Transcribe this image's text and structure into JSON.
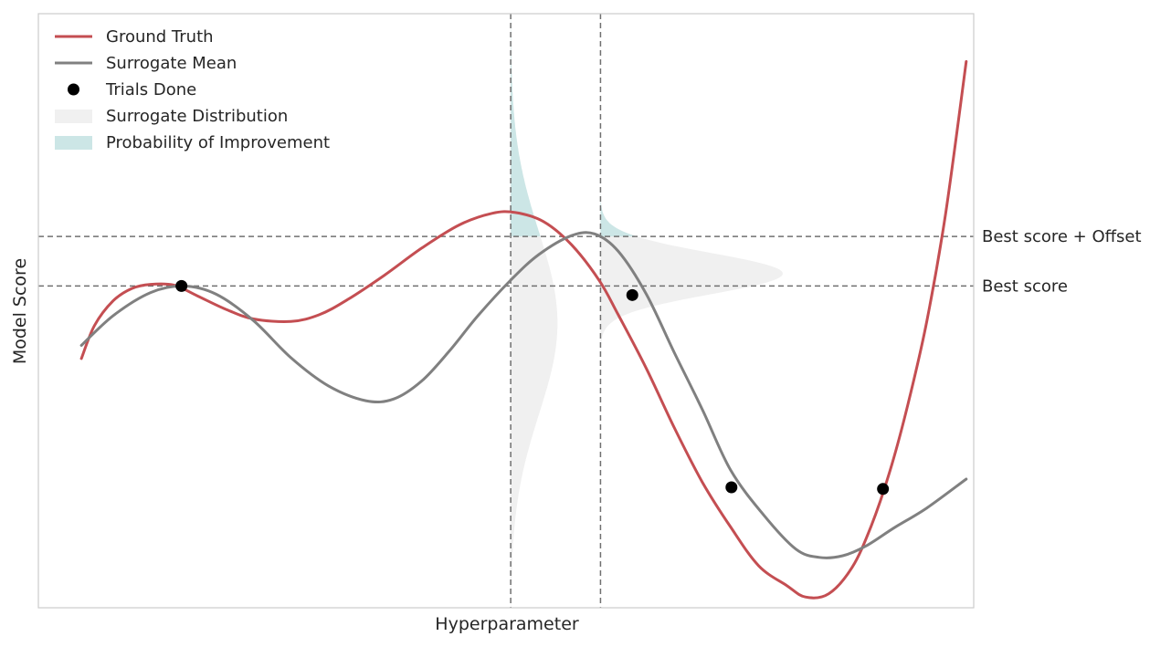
{
  "chart_data": {
    "type": "line",
    "title": "",
    "xlabel": "Hyperparameter",
    "ylabel": "Model Score",
    "xlim": [
      0,
      10
    ],
    "ylim": [
      -2.6,
      4.6
    ],
    "grid": false,
    "legend_position": "top-left",
    "legend": [
      {
        "label": "Ground Truth",
        "kind": "line",
        "color": "#c44e52"
      },
      {
        "label": "Surrogate Mean",
        "kind": "line",
        "color": "#808080"
      },
      {
        "label": "Trials Done",
        "kind": "marker",
        "color": "#000000"
      },
      {
        "label": "Surrogate Distribution",
        "kind": "patch",
        "color": "#f0f0f0"
      },
      {
        "label": "Probability of Improvement",
        "kind": "patch",
        "color": "#cce6e6"
      }
    ],
    "series": [
      {
        "name": "Ground Truth",
        "color": "#c44e52",
        "x": [
          0.46,
          0.6,
          0.8,
          1.0,
          1.2,
          1.45,
          1.7,
          2.0,
          2.3,
          2.7,
          3.0,
          3.3,
          3.7,
          4.1,
          4.5,
          4.85,
          5.1,
          5.4,
          5.7,
          6.0,
          6.2,
          6.5,
          6.8,
          7.1,
          7.4,
          7.7,
          8.0,
          8.2,
          8.45,
          8.7,
          8.9,
          9.1,
          9.3,
          9.5,
          9.7,
          9.92
        ],
        "y": [
          0.42,
          0.82,
          1.12,
          1.27,
          1.32,
          1.31,
          1.18,
          1.02,
          0.9,
          0.87,
          0.95,
          1.13,
          1.43,
          1.76,
          2.04,
          2.18,
          2.19,
          2.08,
          1.8,
          1.36,
          0.95,
          0.3,
          -0.42,
          -1.08,
          -1.62,
          -2.09,
          -2.33,
          -2.47,
          -2.43,
          -2.11,
          -1.62,
          -0.96,
          -0.12,
          0.88,
          2.18,
          4.02
        ]
      },
      {
        "name": "Surrogate Mean",
        "color": "#808080",
        "x": [
          0.46,
          0.8,
          1.2,
          1.55,
          1.9,
          2.3,
          2.7,
          3.1,
          3.5,
          3.8,
          4.1,
          4.4,
          4.7,
          5.05,
          5.35,
          5.7,
          5.95,
          6.2,
          6.5,
          6.8,
          7.1,
          7.4,
          7.75,
          8.1,
          8.35,
          8.6,
          8.85,
          9.15,
          9.5,
          9.92
        ],
        "y": [
          0.58,
          0.94,
          1.22,
          1.3,
          1.2,
          0.88,
          0.43,
          0.09,
          -0.09,
          -0.07,
          0.15,
          0.52,
          0.94,
          1.37,
          1.68,
          1.91,
          1.93,
          1.72,
          1.2,
          0.49,
          -0.2,
          -0.93,
          -1.47,
          -1.89,
          -1.99,
          -1.97,
          -1.85,
          -1.63,
          -1.39,
          -1.04
        ]
      }
    ],
    "trials": {
      "x": [
        1.53,
        6.35,
        7.41,
        9.03
      ],
      "y": [
        1.3,
        1.19,
        -1.14,
        -1.16
      ]
    },
    "reference_lines": {
      "horizontal": [
        {
          "y": 1.3,
          "label": "Best score"
        },
        {
          "y": 1.9,
          "label": "Best score + Offset"
        }
      ],
      "vertical": [
        {
          "x": 5.05
        },
        {
          "x": 6.01
        }
      ]
    },
    "distributions": [
      {
        "x_center": 5.05,
        "mean": 0.85,
        "sd": 1.1,
        "height": 0.5
      },
      {
        "x_center": 6.01,
        "mean": 1.45,
        "sd": 0.25,
        "height": 1.95
      }
    ],
    "colors": {
      "ground_truth": "#c44e52",
      "surrogate_mean": "#808080",
      "trials": "#000000",
      "distribution_fill": "#f0f0f0",
      "improvement_fill": "#cce6e6",
      "reference_line": "#707070",
      "axes_frame": "#cccccc"
    }
  }
}
